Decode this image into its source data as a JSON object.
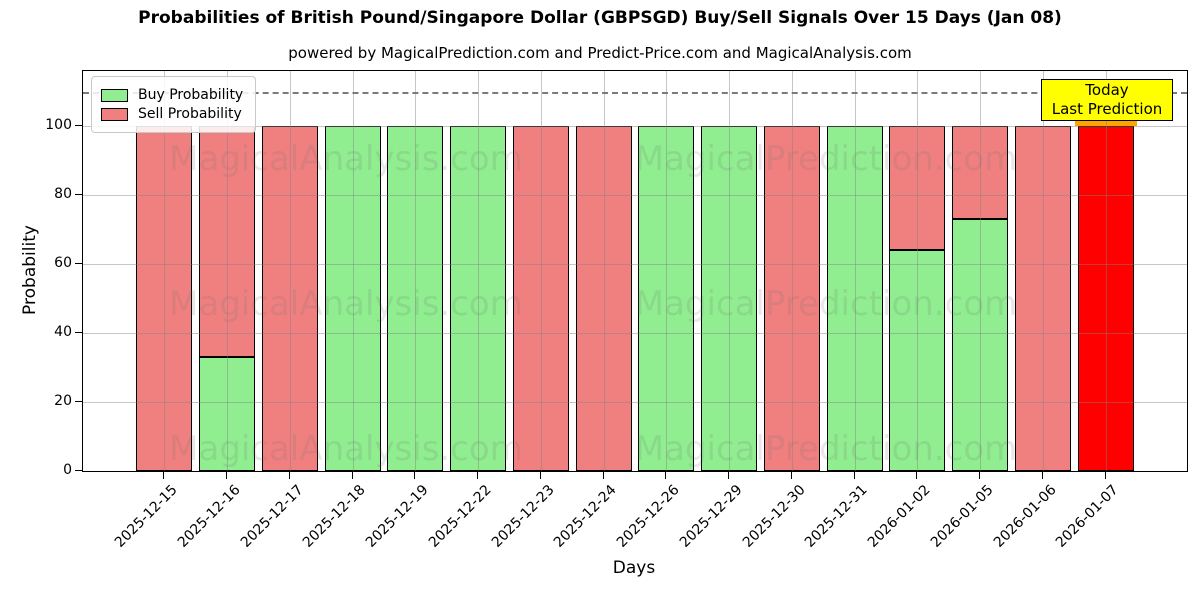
{
  "title": "Probabilities of British Pound/Singapore Dollar (GBPSGD) Buy/Sell Signals Over 15 Days (Jan 08)",
  "subtitle": "powered by MagicalPrediction.com and Predict-Price.com and MagicalAnalysis.com",
  "legend": [
    {
      "label": "Buy Probability",
      "color": "#90ee90"
    },
    {
      "label": "Sell Probability",
      "color": "#f08080"
    }
  ],
  "annotation": {
    "line1": "Today",
    "line2": "Last Prediction",
    "bg": "#ffff00"
  },
  "axes": {
    "ylabel": "Probability",
    "xlabel": "Days",
    "yticks": [
      0,
      20,
      40,
      60,
      80,
      100
    ],
    "ylim": [
      0,
      116
    ],
    "dashed_y": 110,
    "grid": true
  },
  "watermarks": {
    "left_text": "MagicalAnalysis.com",
    "right_text": "MagicalPrediction.com"
  },
  "chart_data": {
    "type": "bar",
    "stacked": true,
    "title": "Probabilities of British Pound/Singapore Dollar (GBPSGD) Buy/Sell Signals Over 15 Days (Jan 08)",
    "xlabel": "Days",
    "ylabel": "Probability",
    "ylim": [
      0,
      116
    ],
    "legend_position": "upper left",
    "categories": [
      "2025-12-15",
      "2025-12-16",
      "2025-12-17",
      "2025-12-18",
      "2025-12-19",
      "2025-12-22",
      "2025-12-23",
      "2025-12-24",
      "2025-12-26",
      "2025-12-29",
      "2025-12-30",
      "2025-12-31",
      "2026-01-02",
      "2026-01-05",
      "2026-01-06",
      "2026-01-07"
    ],
    "series": [
      {
        "name": "Buy Probability",
        "color": "#90ee90",
        "values": [
          0,
          33,
          0,
          100,
          100,
          100,
          0,
          0,
          100,
          100,
          0,
          100,
          64,
          73,
          0,
          0
        ]
      },
      {
        "name": "Sell Probability",
        "color": "#f08080",
        "values": [
          100,
          67,
          100,
          0,
          0,
          0,
          100,
          100,
          0,
          0,
          100,
          0,
          36,
          27,
          100,
          100
        ]
      }
    ],
    "today_index": 15,
    "today_color": "#ff0000",
    "today_highlight_color": "#ffa500"
  }
}
